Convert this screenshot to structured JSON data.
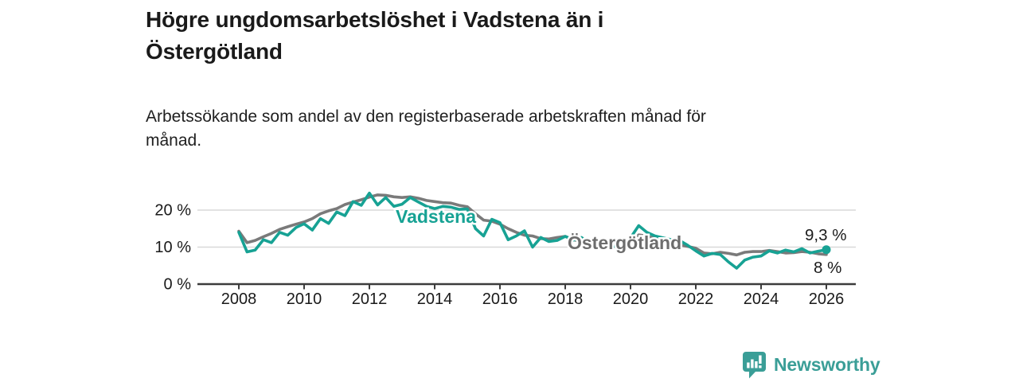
{
  "header": {
    "title": "Högre ungdomsarbetslöshet i Vadstena än i\nÖstergötland",
    "subtitle": "Arbetssökande som andel av den registerbaserade arbetskraften månad för\nmånad."
  },
  "chart_data": {
    "type": "line",
    "title": "Högre ungdomsarbetslöshet i Vadstena än i Östergötland",
    "subtitle": "Arbetssökande som andel av den registerbaserade arbetskraften månad för månad.",
    "unit": "%",
    "grid": "horizontal",
    "xlim": [
      2006.8,
      2027.2
    ],
    "ylim": [
      0,
      27
    ],
    "x_ticks": [
      2008,
      2010,
      2012,
      2014,
      2016,
      2018,
      2020,
      2022,
      2024,
      2026
    ],
    "y_ticks": [
      {
        "value": 0,
        "label": "0 %"
      },
      {
        "value": 10,
        "label": "10 %"
      },
      {
        "value": 20,
        "label": "20 %"
      }
    ],
    "x": [
      2008,
      2008.25,
      2008.5,
      2008.75,
      2009,
      2009.25,
      2009.5,
      2009.75,
      2010,
      2010.25,
      2010.5,
      2010.75,
      2011,
      2011.25,
      2011.5,
      2011.75,
      2012,
      2012.25,
      2012.5,
      2012.75,
      2013,
      2013.25,
      2013.5,
      2013.75,
      2014,
      2014.25,
      2014.5,
      2014.75,
      2015,
      2015.25,
      2015.5,
      2015.75,
      2016,
      2016.25,
      2016.5,
      2016.75,
      2017,
      2017.25,
      2017.5,
      2017.75,
      2018,
      2018.25,
      2018.5,
      2018.75,
      2019,
      2019.25,
      2019.5,
      2019.75,
      2020,
      2020.25,
      2020.5,
      2020.75,
      2021,
      2021.25,
      2021.5,
      2021.75,
      2022,
      2022.25,
      2022.5,
      2022.75,
      2023,
      2023.25,
      2023.5,
      2023.75,
      2024,
      2024.25,
      2024.5,
      2024.75,
      2025,
      2025.25,
      2025.5,
      2025.75,
      2026
    ],
    "series": [
      {
        "name": "Vadstena",
        "color": "#17a294",
        "label_color": "#17a294",
        "end_dot": true,
        "end_label": "9,3 %",
        "values": [
          14.0,
          8.7,
          9.2,
          12.0,
          11.2,
          14.0,
          13.2,
          15.3,
          16.3,
          14.6,
          17.7,
          16.4,
          19.5,
          18.5,
          22.3,
          21.3,
          24.6,
          21.4,
          23.4,
          21.0,
          21.6,
          23.4,
          22.2,
          21.0,
          20.4,
          21.0,
          20.8,
          20.2,
          20.3,
          15.0,
          13.0,
          17.5,
          16.6,
          12.0,
          13.0,
          14.4,
          10.0,
          12.6,
          11.5,
          11.8,
          12.9,
          11.9,
          12.6,
          11.0,
          11.5,
          10.8,
          10.2,
          11.0,
          12.5,
          15.8,
          14.0,
          13.0,
          12.5,
          12.0,
          11.8,
          10.5,
          9.0,
          7.6,
          8.3,
          8.0,
          6.0,
          4.3,
          6.5,
          7.3,
          7.6,
          9.0,
          8.4,
          9.2,
          8.7,
          9.6,
          8.4,
          8.9,
          9.3
        ]
      },
      {
        "name": "Östergötland",
        "color": "#7a7a7a",
        "label_color": "#6d6d6d",
        "end_dot": false,
        "end_label": "8 %",
        "values": [
          14.3,
          11.2,
          11.8,
          12.8,
          13.7,
          14.8,
          15.5,
          16.2,
          16.8,
          17.7,
          19.0,
          19.8,
          20.4,
          21.5,
          22.2,
          22.8,
          23.5,
          24.1,
          24.0,
          23.6,
          23.4,
          23.6,
          23.2,
          22.6,
          22.3,
          22.0,
          21.9,
          21.3,
          20.9,
          19.0,
          17.3,
          17.0,
          16.2,
          15.0,
          14.0,
          13.2,
          13.0,
          12.3,
          12.2,
          12.6,
          12.9,
          12.0,
          11.5,
          11.0,
          10.8,
          10.3,
          10.2,
          10.8,
          11.5,
          13.3,
          13.0,
          12.3,
          11.8,
          11.2,
          10.6,
          10.2,
          9.7,
          8.4,
          8.2,
          8.6,
          8.3,
          7.9,
          8.6,
          8.8,
          8.8,
          9.1,
          8.8,
          8.4,
          8.5,
          8.8,
          8.6,
          8.2,
          8.0
        ]
      }
    ],
    "annotations": [
      {
        "text": "9,3 %",
        "series": "Vadstena"
      },
      {
        "text": "8 %",
        "series": "Östergötland"
      }
    ],
    "colors": {
      "axis": "#3c3c3c",
      "gridline": "#d9d9d9",
      "tick_label": "#1a1a1a",
      "annotation": "#1a1a1a"
    }
  },
  "footer": {
    "brand": "Newsworthy",
    "brand_color": "#3a9e97",
    "logo_icon": "bar-chart-speech-bubble-icon"
  }
}
